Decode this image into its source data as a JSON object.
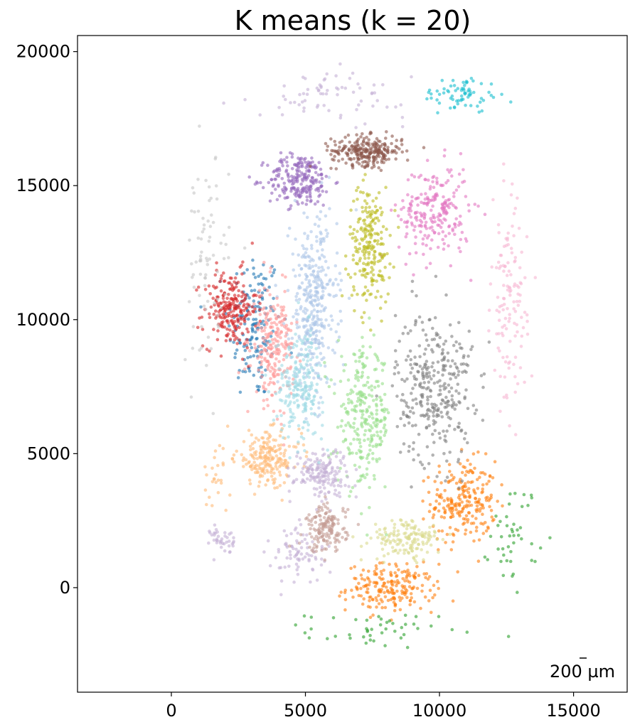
{
  "chart_data": {
    "type": "scatter",
    "title": "K means (k = 20)",
    "xlabel": "",
    "ylabel": "",
    "xlim": [
      -3500,
      17000
    ],
    "ylim": [
      -3900,
      20600
    ],
    "xticks": [
      0,
      5000,
      10000,
      15000
    ],
    "yticks": [
      0,
      5000,
      10000,
      15000,
      20000
    ],
    "xtick_labels": [
      "0",
      "5000",
      "10000",
      "15000"
    ],
    "ytick_labels": [
      "0",
      "5000",
      "10000",
      "15000",
      "20000"
    ],
    "grid": false,
    "legend": "none",
    "scale_bar_label": "200 µm",
    "clusters": [
      {
        "color": "#1f77b4",
        "cx": 3100,
        "cy": 9800,
        "sx": 900,
        "sy": 2600,
        "n": 160
      },
      {
        "color": "#ff7f0e",
        "cx": 10900,
        "cy": 3200,
        "sx": 1100,
        "sy": 1400,
        "n": 230
      },
      {
        "color": "#ff7f0e",
        "cx": 8200,
        "cy": 0,
        "sx": 1500,
        "sy": 800,
        "n": 200
      },
      {
        "color": "#2ca02c",
        "cx": 12800,
        "cy": 2000,
        "sx": 800,
        "sy": 1800,
        "n": 45
      },
      {
        "color": "#2ca02c",
        "cx": 7500,
        "cy": -1600,
        "sx": 2200,
        "sy": 600,
        "n": 45
      },
      {
        "color": "#d62728",
        "cx": 2200,
        "cy": 10400,
        "sx": 900,
        "sy": 1300,
        "n": 230
      },
      {
        "color": "#9467bd",
        "cx": 4800,
        "cy": 15200,
        "sx": 1100,
        "sy": 900,
        "n": 230
      },
      {
        "color": "#8c564b",
        "cx": 7300,
        "cy": 16300,
        "sx": 1200,
        "sy": 500,
        "n": 260
      },
      {
        "color": "#e377c2",
        "cx": 9800,
        "cy": 14000,
        "sx": 1200,
        "sy": 1600,
        "n": 230
      },
      {
        "color": "#7f7f7f",
        "cx": 9800,
        "cy": 7500,
        "sx": 1300,
        "sy": 2600,
        "n": 330
      },
      {
        "color": "#bcbd22",
        "cx": 7400,
        "cy": 12800,
        "sx": 700,
        "sy": 2000,
        "n": 230
      },
      {
        "color": "#17becf",
        "cx": 10800,
        "cy": 18400,
        "sx": 1300,
        "sy": 600,
        "n": 70
      },
      {
        "color": "#aec7e8",
        "cx": 5300,
        "cy": 10500,
        "sx": 800,
        "sy": 3000,
        "n": 360
      },
      {
        "color": "#ffbb78",
        "cx": 3600,
        "cy": 4800,
        "sx": 1100,
        "sy": 900,
        "n": 210
      },
      {
        "color": "#ffbb78",
        "cx": 1600,
        "cy": 4000,
        "sx": 500,
        "sy": 1300,
        "n": 25
      },
      {
        "color": "#98df8a",
        "cx": 7200,
        "cy": 6300,
        "sx": 900,
        "sy": 2300,
        "n": 270
      },
      {
        "color": "#ff9896",
        "cx": 3800,
        "cy": 9000,
        "sx": 700,
        "sy": 1900,
        "n": 230
      },
      {
        "color": "#c5b0d5",
        "cx": 5600,
        "cy": 4300,
        "sx": 900,
        "sy": 800,
        "n": 170
      },
      {
        "color": "#c5b0d5",
        "cx": 4800,
        "cy": 1200,
        "sx": 1000,
        "sy": 1000,
        "n": 80
      },
      {
        "color": "#c5b0d5",
        "cx": 1900,
        "cy": 1800,
        "sx": 400,
        "sy": 500,
        "n": 40
      },
      {
        "color": "#c49c94",
        "cx": 5800,
        "cy": 2200,
        "sx": 700,
        "sy": 800,
        "n": 160
      },
      {
        "color": "#f7b6d2",
        "cx": 12600,
        "cy": 10500,
        "sx": 600,
        "sy": 3500,
        "n": 130
      },
      {
        "color": "#c7c7c7",
        "cx": 1300,
        "cy": 12000,
        "sx": 800,
        "sy": 3500,
        "n": 80
      },
      {
        "color": "#dbdb8d",
        "cx": 8800,
        "cy": 1800,
        "sx": 1200,
        "sy": 700,
        "n": 150
      },
      {
        "color": "#9edae5",
        "cx": 4800,
        "cy": 7600,
        "sx": 800,
        "sy": 1800,
        "n": 220
      },
      {
        "color": "#c5b0d5",
        "cx": 6000,
        "cy": 18400,
        "sx": 2500,
        "sy": 800,
        "n": 70
      }
    ]
  }
}
